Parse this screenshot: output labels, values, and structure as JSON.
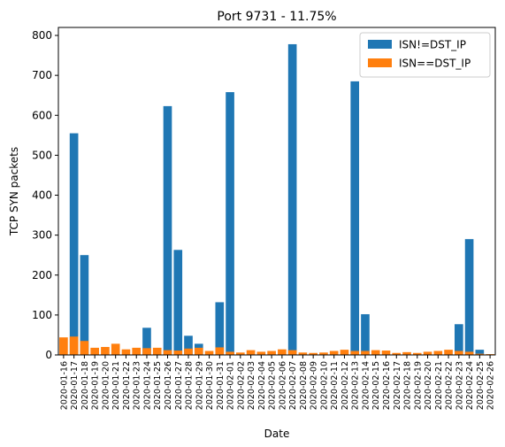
{
  "chart_data": {
    "type": "bar",
    "stacked": false,
    "title": "Port 9731 - 11.75%",
    "xlabel": "Date",
    "ylabel": "TCP SYN packets",
    "ylim": [
      0,
      820
    ],
    "yticks": [
      0,
      100,
      200,
      300,
      400,
      500,
      600,
      700,
      800
    ],
    "grid": false,
    "legend_position": "top-right",
    "categories": [
      "2020-01-16",
      "2020-01-17",
      "2020-01-18",
      "2020-01-19",
      "2020-01-20",
      "2020-01-21",
      "2020-01-22",
      "2020-01-23",
      "2020-01-24",
      "2020-01-25",
      "2020-01-26",
      "2020-01-27",
      "2020-01-28",
      "2020-01-29",
      "2020-01-30",
      "2020-01-31",
      "2020-02-01",
      "2020-02-02",
      "2020-02-03",
      "2020-02-04",
      "2020-02-05",
      "2020-02-06",
      "2020-02-07",
      "2020-02-08",
      "2020-02-09",
      "2020-02-10",
      "2020-02-11",
      "2020-02-12",
      "2020-02-13",
      "2020-02-14",
      "2020-02-15",
      "2020-02-16",
      "2020-02-17",
      "2020-02-18",
      "2020-02-19",
      "2020-02-20",
      "2020-02-21",
      "2020-02-22",
      "2020-02-23",
      "2020-02-24",
      "2020-02-25",
      "2020-02-26"
    ],
    "series": [
      {
        "name": "ISN!=DST_IP",
        "color": "#1f77b4",
        "values": [
          0,
          555,
          250,
          0,
          0,
          0,
          0,
          0,
          68,
          0,
          623,
          263,
          48,
          28,
          0,
          132,
          658,
          0,
          0,
          0,
          0,
          0,
          778,
          0,
          0,
          0,
          0,
          0,
          685,
          102,
          0,
          0,
          0,
          0,
          0,
          0,
          0,
          0,
          77,
          290,
          13,
          0
        ]
      },
      {
        "name": "ISN==DST_IP",
        "color": "#ff7f0e",
        "values": [
          44,
          46,
          35,
          18,
          20,
          28,
          14,
          18,
          17,
          18,
          12,
          11,
          16,
          18,
          10,
          19,
          8,
          6,
          12,
          8,
          10,
          14,
          12,
          6,
          5,
          6,
          10,
          13,
          10,
          10,
          12,
          11,
          5,
          7,
          5,
          8,
          10,
          13,
          10,
          8,
          3,
          2
        ]
      }
    ]
  }
}
